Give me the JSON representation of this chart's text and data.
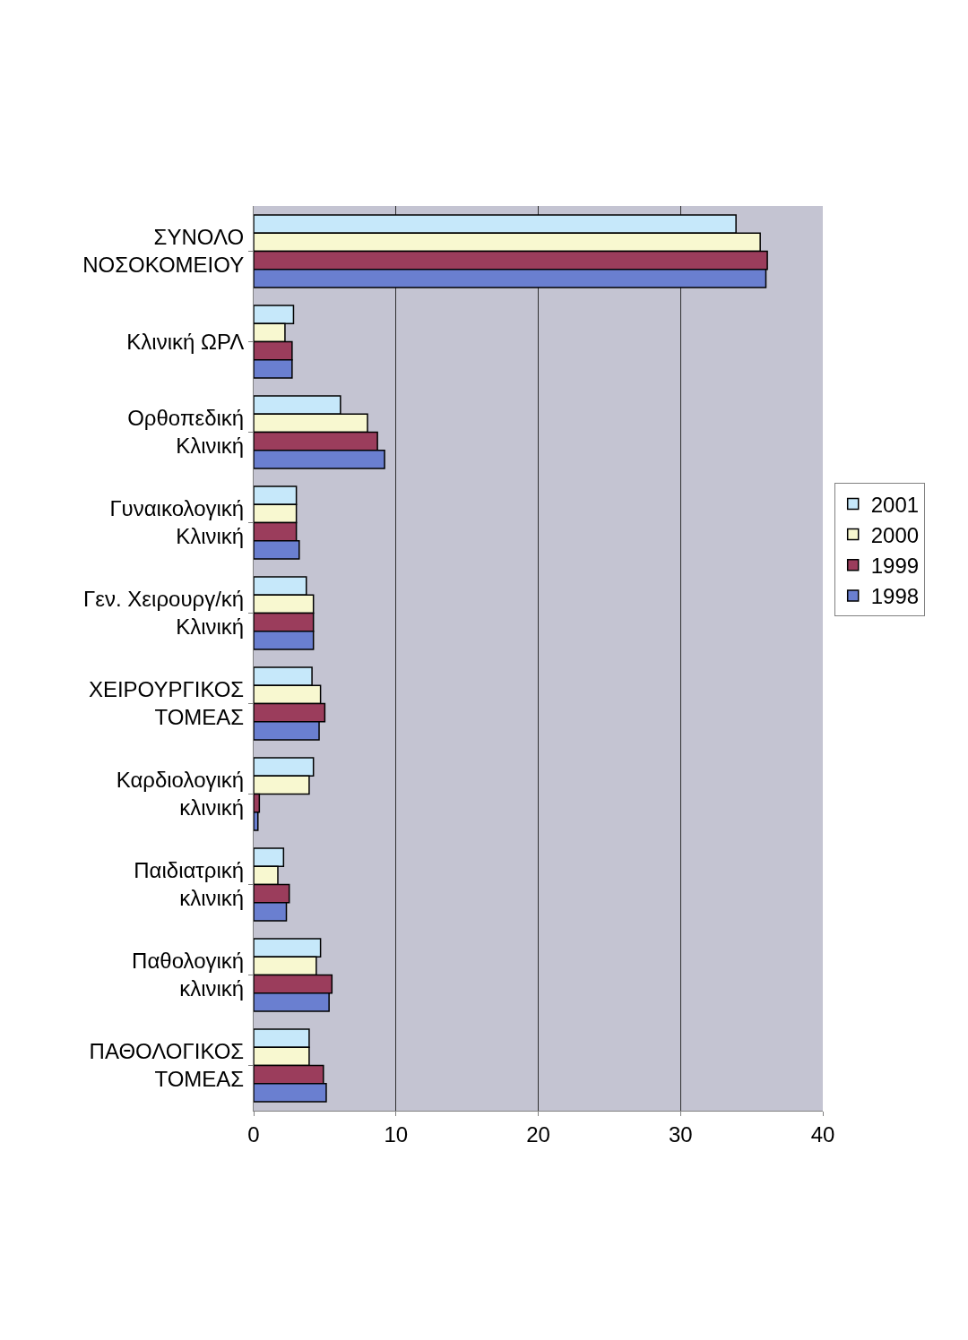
{
  "chart_data": {
    "type": "bar",
    "orientation": "horizontal",
    "categories": [
      "ΣΥΝΟΛΟ ΝΟΣΟΚΟΜΕΙΟΥ",
      "Κλινική ΩΡΛ",
      "Ορθοπεδική Κλινική",
      "Γυναικολογική Κλινική",
      "Γεν. Χειρουργ/κή Κλινική",
      "ΧΕΙΡΟΥΡΓΙΚΟΣ ΤΟΜΕΑΣ",
      "Καρδιολογική κλινική",
      "Παιδιατρική κλινική",
      "Παθολογική κλινική",
      "ΠΑΘΟΛΟΓΙΚΟΣ ΤΟΜΕΑΣ"
    ],
    "series": [
      {
        "name": "2001",
        "color": "#c6e8fa",
        "values": [
          33.9,
          2.8,
          6.1,
          3.0,
          3.7,
          4.1,
          4.2,
          2.1,
          4.7,
          3.9
        ]
      },
      {
        "name": "2000",
        "color": "#f8f8d0",
        "values": [
          35.6,
          2.2,
          8.0,
          3.0,
          4.2,
          4.7,
          3.9,
          1.7,
          4.4,
          3.9
        ]
      },
      {
        "name": "1999",
        "color": "#9b3d5c",
        "values": [
          36.1,
          2.7,
          8.7,
          3.0,
          4.2,
          5.0,
          0.4,
          2.5,
          5.5,
          4.9
        ]
      },
      {
        "name": "1998",
        "color": "#6a7fd0",
        "values": [
          36.0,
          2.7,
          9.2,
          3.2,
          4.2,
          4.6,
          0.3,
          2.3,
          5.3,
          5.1
        ]
      }
    ],
    "xlim": [
      0,
      40
    ],
    "xticks": [
      0,
      10,
      20,
      30,
      40
    ],
    "grid": "x",
    "legend": "right"
  }
}
